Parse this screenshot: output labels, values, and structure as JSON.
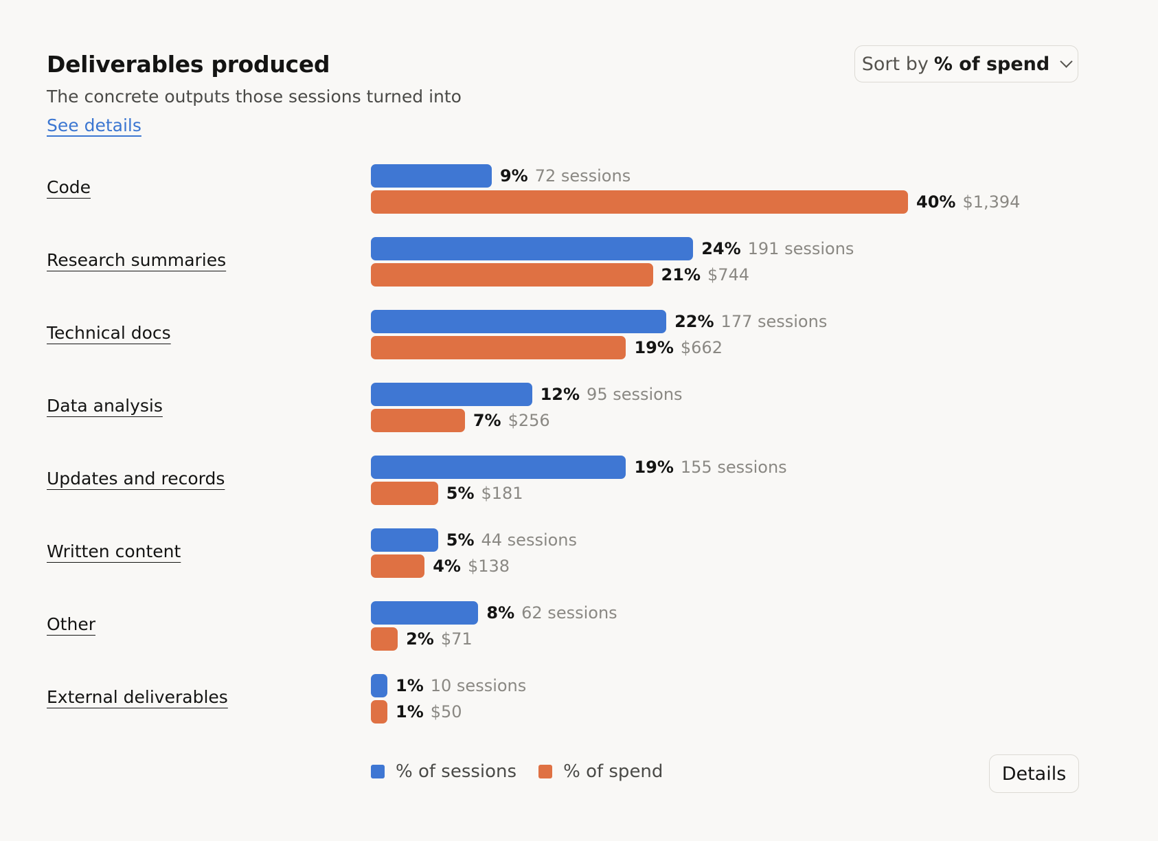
{
  "header": {
    "title": "Deliverables produced",
    "subtitle": "The concrete outputs those sessions turned into",
    "see_details": "See details",
    "sort": {
      "prefix": "Sort by",
      "value": "% of spend"
    }
  },
  "footer": {
    "details_button": "Details"
  },
  "colors": {
    "sessions": "#3f77d3",
    "spend": "#df7143"
  },
  "chart_data": {
    "type": "bar",
    "orientation": "horizontal",
    "categories": [
      "Code",
      "Research summaries",
      "Technical docs",
      "Data analysis",
      "Updates and records",
      "Written content",
      "Other",
      "External deliverables"
    ],
    "series": [
      {
        "name": "% of sessions",
        "color": "#3f77d3",
        "values": [
          9,
          24,
          22,
          12,
          19,
          5,
          8,
          1
        ],
        "labels": [
          "9%",
          "24%",
          "22%",
          "12%",
          "19%",
          "5%",
          "8%",
          "1%"
        ],
        "details": [
          "72 sessions",
          "191 sessions",
          "177 sessions",
          "95 sessions",
          "155 sessions",
          "44 sessions",
          "62 sessions",
          "10 sessions"
        ]
      },
      {
        "name": "% of spend",
        "color": "#df7143",
        "values": [
          40,
          21,
          19,
          7,
          5,
          4,
          2,
          1
        ],
        "labels": [
          "40%",
          "21%",
          "19%",
          "7%",
          "5%",
          "4%",
          "2%",
          "1%"
        ],
        "details": [
          "$1,394",
          "$744",
          "$662",
          "$256",
          "$181",
          "$138",
          "$71",
          "$50"
        ]
      }
    ],
    "legend": [
      "% of sessions",
      "% of spend"
    ],
    "legend_position": "bottom",
    "grid": false
  }
}
